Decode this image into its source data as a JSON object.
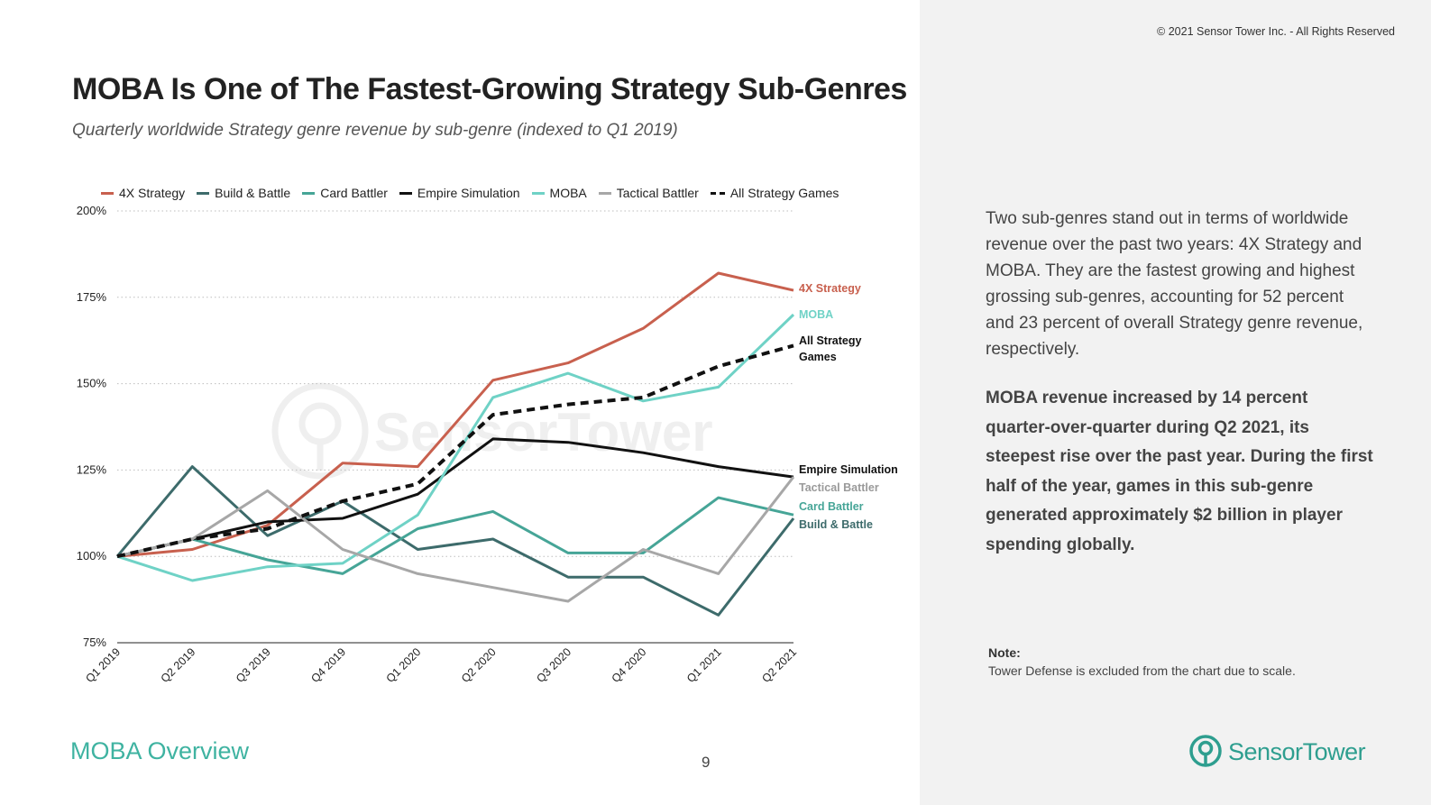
{
  "copyright": "© 2021 Sensor Tower Inc. - All Rights Reserved",
  "title": "MOBA Is One of The Fastest-Growing Strategy Sub-Genres",
  "subtitle": "Quarterly worldwide Strategy genre revenue by sub-genre (indexed to Q1 2019)",
  "watermark": "SensorTower",
  "footer": {
    "section": "MOBA Overview",
    "page": "9"
  },
  "sidebar": {
    "paragraph1": "Two sub-genres stand out in terms of worldwide revenue over the past two years: 4X Strategy and MOBA. They are the fastest growing and highest grossing sub-genres, accounting for 52 percent and 23 percent of overall Strategy genre revenue, respectively.",
    "paragraph2": "MOBA revenue increased by 14 percent quarter-over-quarter during Q2 2021, its steepest rise over the past year. During the first half of the year, games in this sub-genre generated approximately $2 billion in player spending globally.",
    "note_label": "Note:",
    "note_text": "Tower Defense is excluded from the chart due to scale."
  },
  "logo": {
    "part1": "Sensor",
    "part2": "Tower",
    "color": "#2e9e8f"
  },
  "chart_data": {
    "type": "line",
    "categories": [
      "Q1 2019",
      "Q2 2019",
      "Q3 2019",
      "Q4 2019",
      "Q1 2020",
      "Q2 2020",
      "Q3 2020",
      "Q4 2020",
      "Q1 2021",
      "Q2 2021"
    ],
    "ylim": [
      75,
      200
    ],
    "yticks": [
      75,
      100,
      125,
      150,
      175,
      200
    ],
    "ytick_labels": [
      "75%",
      "100%",
      "125%",
      "150%",
      "175%",
      "200%"
    ],
    "grid": true,
    "legend_position": "top",
    "series": [
      {
        "name": "4X Strategy",
        "color": "#c8604e",
        "dashed": false,
        "values": [
          100,
          102,
          109,
          127,
          126,
          151,
          156,
          166,
          182,
          177
        ]
      },
      {
        "name": "Build & Battle",
        "color": "#3d6b6b",
        "dashed": false,
        "values": [
          100,
          126,
          106,
          116,
          102,
          105,
          94,
          94,
          83,
          111
        ]
      },
      {
        "name": "Card Battler",
        "color": "#46a597",
        "dashed": false,
        "values": [
          100,
          105,
          99,
          95,
          108,
          113,
          101,
          101,
          117,
          112
        ]
      },
      {
        "name": "Empire Simulation",
        "color": "#111111",
        "dashed": false,
        "values": [
          100,
          105,
          110,
          111,
          118,
          134,
          133,
          130,
          126,
          123
        ]
      },
      {
        "name": "MOBA",
        "color": "#6fd2c6",
        "dashed": false,
        "values": [
          100,
          93,
          97,
          98,
          112,
          146,
          153,
          145,
          149,
          170
        ]
      },
      {
        "name": "Tactical Battler",
        "color": "#a7a7a7",
        "dashed": false,
        "values": [
          100,
          105,
          119,
          102,
          95,
          91,
          87,
          102,
          95,
          123
        ]
      },
      {
        "name": "All Strategy Games",
        "color": "#111111",
        "dashed": true,
        "values": [
          100,
          105,
          108,
          116,
          121,
          141,
          144,
          146,
          155,
          161
        ]
      }
    ],
    "end_labels": [
      {
        "series": "4X Strategy",
        "text": "4X Strategy",
        "color": "#c8604e"
      },
      {
        "series": "MOBA",
        "text": "MOBA",
        "color": "#6fd2c6"
      },
      {
        "series": "All Strategy Games",
        "text": "All Strategy",
        "text2": "Games",
        "color": "#111111"
      },
      {
        "series": "Empire Simulation",
        "text": "Empire Simulation",
        "color": "#111111"
      },
      {
        "series": "Tactical Battler",
        "text": "Tactical Battler",
        "color": "#9a9a9a"
      },
      {
        "series": "Card Battler",
        "text": "Card Battler",
        "color": "#46a597"
      },
      {
        "series": "Build & Battle",
        "text": "Build & Battle",
        "color": "#3d6b6b"
      }
    ]
  }
}
